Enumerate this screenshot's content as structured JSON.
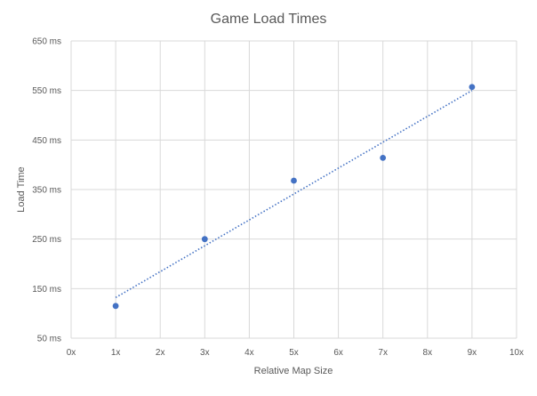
{
  "chart_data": {
    "type": "scatter",
    "title": "Game Load Times",
    "xlabel": "Relative Map Size",
    "ylabel": "Load Time",
    "x_ticks": [
      "0x",
      "1x",
      "2x",
      "3x",
      "4x",
      "5x",
      "6x",
      "7x",
      "8x",
      "9x",
      "10x"
    ],
    "y_ticks": [
      "50 ms",
      "150 ms",
      "250 ms",
      "350 ms",
      "450 ms",
      "550 ms",
      "650 ms"
    ],
    "xlim": [
      0,
      10
    ],
    "ylim": [
      50,
      650
    ],
    "grid": true,
    "legend": "none",
    "series": [
      {
        "x": [
          1,
          3,
          5,
          7,
          9
        ],
        "y": [
          115,
          250,
          368,
          414,
          557
        ],
        "color": "#4472c4"
      }
    ],
    "trendline": {
      "type": "linear",
      "style": "dotted",
      "x": [
        1,
        9
      ],
      "y": [
        132,
        550
      ],
      "color": "#4472c4"
    }
  }
}
